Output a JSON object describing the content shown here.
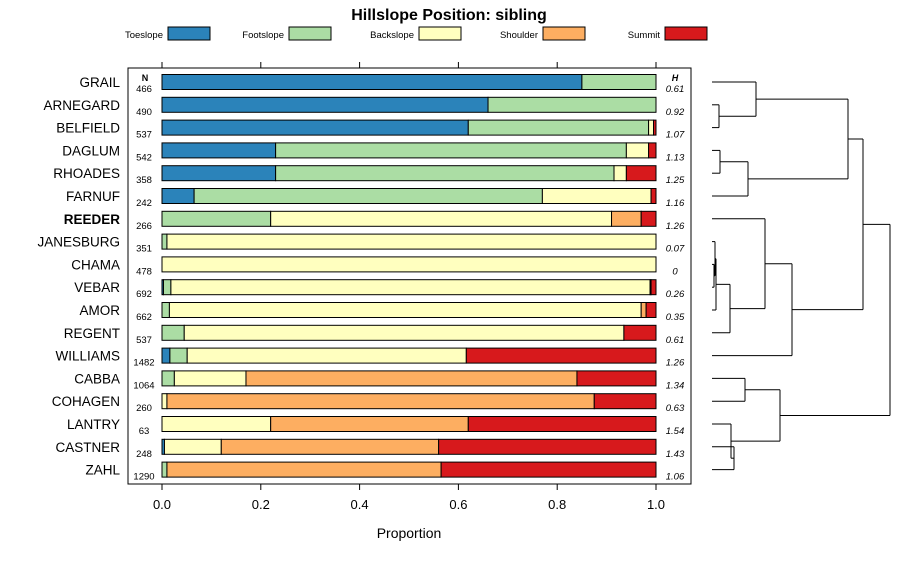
{
  "chart_data": {
    "type": "bar",
    "orientation": "horizontal",
    "stacked": true,
    "title": "Hillslope Position: sibling",
    "xlabel": "Proportion",
    "xlim": [
      0,
      1
    ],
    "xticks": [
      0.0,
      0.2,
      0.4,
      0.6,
      0.8,
      1.0
    ],
    "xtick_labels": [
      "0.0",
      "0.2",
      "0.4",
      "0.6",
      "0.8",
      "1.0"
    ],
    "grid": false,
    "legend_position": "top",
    "n_header": "N",
    "h_header": "H",
    "highlighted_category": "REEDER",
    "categories": [
      "GRAIL",
      "ARNEGARD",
      "BELFIELD",
      "DAGLUM",
      "RHOADES",
      "FARNUF",
      "REEDER",
      "JANESBURG",
      "CHAMA",
      "VEBAR",
      "AMOR",
      "REGENT",
      "WILLIAMS",
      "CABBA",
      "COHAGEN",
      "LANTRY",
      "CASTNER",
      "ZAHL"
    ],
    "n": [
      "466",
      "490",
      "537",
      "542",
      "358",
      "242",
      "266",
      "351",
      "478",
      "692",
      "662",
      "537",
      "1482",
      "1064",
      "260",
      "63",
      "248",
      "1290"
    ],
    "h": [
      "0.61",
      "0.92",
      "1.07",
      "1.13",
      "1.25",
      "1.16",
      "1.26",
      "0.07",
      "0",
      "0.26",
      "0.35",
      "0.61",
      "1.26",
      "1.34",
      "0.63",
      "1.54",
      "1.43",
      "1.06"
    ],
    "series": [
      {
        "name": "Toeslope",
        "color": "#2b83ba",
        "values": [
          0.85,
          0.66,
          0.62,
          0.23,
          0.23,
          0.065,
          0,
          0,
          0,
          0.003,
          0,
          0,
          0.016,
          0,
          0,
          0,
          0.005,
          0
        ]
      },
      {
        "name": "Footslope",
        "color": "#abdda4",
        "values": [
          0.15,
          0.34,
          0.365,
          0.71,
          0.685,
          0.705,
          0.22,
          0.01,
          0,
          0.015,
          0.015,
          0.045,
          0.035,
          0.025,
          0,
          0,
          0,
          0.01
        ]
      },
      {
        "name": "Backslope",
        "color": "#ffffbf",
        "values": [
          0,
          0,
          0.01,
          0.045,
          0.025,
          0.22,
          0.69,
          0.99,
          1.0,
          0.97,
          0.955,
          0.89,
          0.565,
          0.145,
          0.01,
          0.22,
          0.115,
          0
        ]
      },
      {
        "name": "Shoulder",
        "color": "#fdae61",
        "values": [
          0,
          0,
          0,
          0,
          0,
          0,
          0.06,
          0,
          0,
          0.002,
          0.01,
          0,
          0,
          0.67,
          0.865,
          0.4,
          0.44,
          0.555
        ]
      },
      {
        "name": "Summit",
        "color": "#d7191c",
        "values": [
          0,
          0,
          0.005,
          0.015,
          0.06,
          0.01,
          0.03,
          0,
          0,
          0.01,
          0.02,
          0.065,
          0.384,
          0.16,
          0.125,
          0.38,
          0.44,
          0.435
        ]
      }
    ]
  }
}
